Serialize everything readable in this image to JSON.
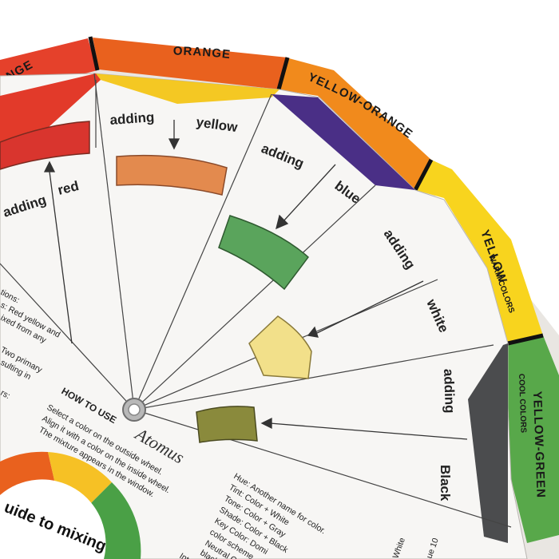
{
  "outer_ring": [
    {
      "label": "ORANGE",
      "color": "#e9611e"
    },
    {
      "label": "YELLOW-ORANGE",
      "color": "#f08a1c"
    },
    {
      "label": "YELLOW",
      "color": "#f8d21e"
    },
    {
      "label": "YELLOW-GREEN",
      "color": "#5aa84a"
    },
    {
      "label": "RANGE",
      "color": "#e2402a"
    }
  ],
  "ring_sublabels": {
    "warm": "WARM COLORS",
    "cool": "COOL COLORS"
  },
  "segments": [
    {
      "adding": "adding",
      "color_word": "red"
    },
    {
      "adding": "adding",
      "color_word": "yellow"
    },
    {
      "adding": "adding",
      "color_word": "blue"
    },
    {
      "adding": "adding",
      "color_word": "white"
    },
    {
      "adding": "adding",
      "color_word": "Black"
    }
  ],
  "windows": {
    "orange": "#e38a4e",
    "green": "#5aa45c",
    "pale_yellow": "#f2e08a",
    "olive": "#8a8a3c"
  },
  "how_to_use": {
    "title": "HOW TO USE",
    "lines": [
      "Select a color on the outside wheel.",
      "Align it with a color on the inside wheel.",
      "The mixture appears in the window."
    ]
  },
  "brand": "Atomus",
  "left_notes": [
    "tions:",
    "s: Red yellow and",
    "ixed from any",
    "Two primary",
    "sulting in",
    "rs:"
  ],
  "glossary": [
    "Hue: Another name for color.",
    "Tint: Color + White",
    "Tone: Color + Gray",
    "Shade: Color + Black",
    "Key Color: Domi",
    "color scheme",
    "Neutral C",
    "black",
    "Int"
  ],
  "guide_title": "uide to mixing",
  "corner_text": [
    "White",
    "ue 10"
  ]
}
